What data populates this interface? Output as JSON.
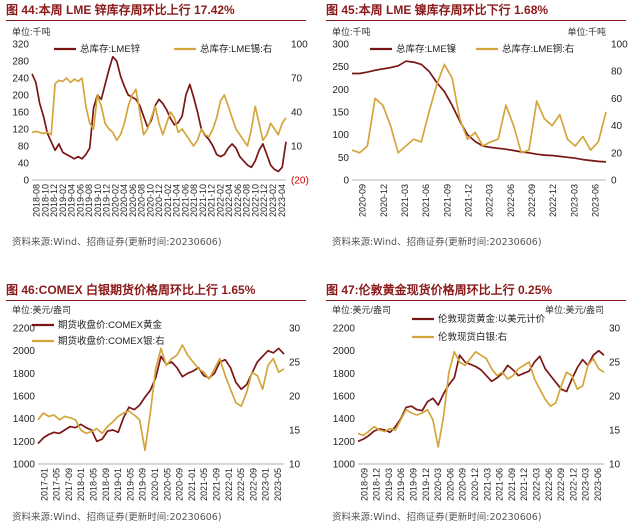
{
  "charts": [
    {
      "title": "图 44:本周 LME 锌库存周环比上行 17.42%",
      "source": "资料来源:Wind、招商证券(更新时间:20230606)",
      "chart_data": {
        "type": "line",
        "unit_left": "单位:千吨",
        "left_ticks": [
          "320",
          "280",
          "240",
          "200",
          "160",
          "120",
          "80",
          "40",
          "0"
        ],
        "right_ticks": [
          "100",
          "70",
          "40",
          "10",
          "(20)"
        ],
        "ylim_left": [
          0,
          320
        ],
        "ylim_right": [
          -20,
          100
        ],
        "x_ticks": [
          "2018-08",
          "2018-10",
          "2018-12",
          "2019-02",
          "2019-04",
          "2019-06",
          "2019-08",
          "2019-10",
          "2019-12",
          "2020-02",
          "2020-04",
          "2020-06",
          "2020-08",
          "2020-10",
          "2020-12",
          "2021-02",
          "2021-04",
          "2021-06",
          "2021-08",
          "2021-10",
          "2021-12",
          "2022-02",
          "2022-04",
          "2022-06",
          "2022-08",
          "2022-10",
          "2022-12",
          "2023-02",
          "2023-04"
        ],
        "series": [
          {
            "name": "总库存:LME锌",
            "axis": "left",
            "color": "#7a1515",
            "values": [
              250,
              230,
              180,
              150,
              110,
              90,
              70,
              85,
              65,
              60,
              55,
              50,
              55,
              50,
              60,
              75,
              170,
              200,
              190,
              225,
              260,
              290,
              280,
              245,
              220,
              200,
              195,
              190,
              175,
              150,
              125,
              140,
              175,
              190,
              180,
              165,
              145,
              130,
              135,
              150,
              200,
              225,
              195,
              160,
              120,
              105,
              95,
              80,
              60,
              55,
              60,
              75,
              85,
              75,
              55,
              45,
              35,
              30,
              45,
              70,
              85,
              60,
              35,
              25,
              20,
              30,
              90
            ]
          },
          {
            "name": "总库存:LME锡:右",
            "axis": "right",
            "color": "#d4a53a",
            "values": [
              22,
              23,
              22,
              21,
              22,
              20,
              65,
              68,
              67,
              70,
              66,
              69,
              67,
              70,
              45,
              30,
              25,
              55,
              45,
              30,
              25,
              22,
              15,
              20,
              30,
              45,
              55,
              60,
              40,
              20,
              25,
              35,
              45,
              30,
              20,
              30,
              40,
              35,
              22,
              25,
              20,
              15,
              10,
              15,
              25,
              20,
              18,
              25,
              35,
              50,
              55,
              45,
              35,
              25,
              20,
              15,
              10,
              25,
              45,
              30,
              15,
              20,
              30,
              25,
              20,
              30,
              35
            ]
          }
        ]
      }
    },
    {
      "title": "图 45:本周 LME 镍库存周环比下行 1.68%",
      "source": "资料来源:Wind、招商证券(更新时间:20230606)",
      "chart_data": {
        "type": "line",
        "unit_left": "单位:千吨",
        "unit_right": "单位:千吨",
        "left_ticks": [
          "300",
          "250",
          "200",
          "150",
          "100",
          "50",
          "0"
        ],
        "right_ticks": [
          "100",
          "80",
          "60",
          "40",
          "20",
          "0"
        ],
        "ylim_left": [
          0,
          300
        ],
        "ylim_right": [
          0,
          100
        ],
        "x_ticks": [
          "2020-09",
          "2020-12",
          "2021-03",
          "2021-06",
          "2021-09",
          "2021-12",
          "2022-03",
          "2022-06",
          "2022-09",
          "2022-12",
          "2023-03",
          "2023-06"
        ],
        "series": [
          {
            "name": "总库存:LME镍",
            "axis": "left",
            "color": "#7a1515",
            "values": [
              235,
              235,
              238,
              242,
              245,
              248,
              252,
              262,
              260,
              255,
              240,
              215,
              195,
              165,
              130,
              100,
              85,
              75,
              72,
              70,
              68,
              65,
              62,
              60,
              57,
              55,
              54,
              52,
              50,
              48,
              45,
              43,
              41,
              40
            ]
          },
          {
            "name": "总库存:LME铜:右",
            "axis": "right",
            "color": "#d4a53a",
            "values": [
              22,
              20,
              25,
              60,
              55,
              40,
              20,
              25,
              30,
              28,
              50,
              70,
              85,
              75,
              45,
              30,
              35,
              25,
              28,
              30,
              55,
              40,
              20,
              22,
              58,
              45,
              40,
              48,
              30,
              25,
              32,
              22,
              28,
              50
            ]
          }
        ]
      }
    },
    {
      "title": "图 46:COMEX 白银期货价格周环比上行 1.65%",
      "source": "资料来源:Wind、招商证券(更新时间:20230606)",
      "chart_data": {
        "type": "line",
        "unit_left": "单位:美元/盎司",
        "left_ticks": [
          "2200",
          "2000",
          "1800",
          "1600",
          "1400",
          "1200",
          "1000"
        ],
        "right_ticks": [
          "30",
          "25",
          "20",
          "15",
          "10"
        ],
        "ylim_left": [
          1000,
          2200
        ],
        "ylim_right": [
          10,
          30
        ],
        "x_ticks": [
          "2017-01",
          "2017-05",
          "2017-09",
          "2018-01",
          "2018-05",
          "2018-09",
          "2019-01",
          "2019-05",
          "2019-09",
          "2020-01",
          "2020-05",
          "2020-09",
          "2021-01",
          "2021-05",
          "2021-09",
          "2022-01",
          "2022-05",
          "2022-09",
          "2023-01",
          "2023-05"
        ],
        "series": [
          {
            "name": "期货收盘价:COMEX黄金",
            "axis": "left",
            "color": "#7a1515",
            "values": [
              1180,
              1230,
              1260,
              1280,
              1270,
              1300,
              1330,
              1320,
              1350,
              1320,
              1300,
              1200,
              1220,
              1290,
              1300,
              1280,
              1410,
              1500,
              1480,
              1520,
              1590,
              1650,
              1760,
              1950,
              1880,
              1900,
              1850,
              1770,
              1800,
              1820,
              1850,
              1780,
              1760,
              1800,
              1900,
              1920,
              1850,
              1720,
              1660,
              1700,
              1800,
              1900,
              1950,
              2000,
              1980,
              2020,
              1970
            ]
          },
          {
            "name": "期货收盘价:COMEX银:右",
            "axis": "right",
            "color": "#d4a53a",
            "values": [
              16.5,
              17.5,
              17.0,
              17.2,
              16.5,
              17.0,
              16.8,
              16.5,
              15.0,
              14.5,
              14.8,
              15.2,
              14.5,
              15.5,
              16.2,
              17.0,
              17.5,
              17.8,
              17.2,
              16.5,
              12.0,
              17.5,
              24.0,
              27.0,
              24.5,
              25.5,
              26.0,
              27.5,
              26.0,
              25.0,
              24.0,
              23.5,
              22.5,
              24.0,
              25.5,
              23.0,
              21.0,
              19.0,
              18.5,
              20.5,
              23.5,
              23.0,
              21.0,
              24.5,
              25.5,
              23.5,
              24.0
            ]
          }
        ]
      }
    },
    {
      "title": "图 47:伦敦黄金现货价格周环比上行 0.25%",
      "source": "资料来源:Wind、招商证券(更新时间:20230606)",
      "chart_data": {
        "type": "line",
        "unit_left": "单位:美元/盎司",
        "unit_right": "单位:美元/盎司",
        "left_ticks": [
          "2200",
          "2000",
          "1800",
          "1600",
          "1400",
          "1200",
          "1000"
        ],
        "right_ticks": [
          "30",
          "25",
          "20",
          "15",
          "10"
        ],
        "ylim_left": [
          1000,
          2200
        ],
        "ylim_right": [
          10,
          30
        ],
        "x_ticks": [
          "2018-09",
          "2018-12",
          "2019-03",
          "2019-06",
          "2019-09",
          "2019-12",
          "2020-03",
          "2020-06",
          "2020-09",
          "2020-12",
          "2021-03",
          "2021-06",
          "2021-09",
          "2021-12",
          "2022-03",
          "2022-06",
          "2022-09",
          "2022-12",
          "2023-03",
          "2023-06"
        ],
        "series": [
          {
            "name": "伦敦现货黄金:以美元计价",
            "axis": "left",
            "color": "#7a1515",
            "values": [
              1200,
              1220,
              1250,
              1290,
              1310,
              1300,
              1280,
              1330,
              1400,
              1500,
              1510,
              1480,
              1470,
              1550,
              1580,
              1520,
              1620,
              1700,
              1760,
              1960,
              1900,
              1880,
              1860,
              1830,
              1780,
              1730,
              1760,
              1800,
              1870,
              1830,
              1780,
              1800,
              1820,
              1900,
              1950,
              1840,
              1780,
              1720,
              1660,
              1640,
              1750,
              1850,
              1920,
              1870,
              1960,
              2000,
              1960
            ]
          },
          {
            "name": "伦敦现货白银:右",
            "axis": "right",
            "color": "#d4a53a",
            "values": [
              14.5,
              14.2,
              14.8,
              15.5,
              15.0,
              14.8,
              15.2,
              15.0,
              16.5,
              18.0,
              17.5,
              17.2,
              17.5,
              18.0,
              16.5,
              12.5,
              17.0,
              23.5,
              26.5,
              25.0,
              24.5,
              25.5,
              26.5,
              26.0,
              25.5,
              24.0,
              23.0,
              23.5,
              22.5,
              23.0,
              24.0,
              24.5,
              25.0,
              22.5,
              21.0,
              19.5,
              18.5,
              19.0,
              21.5,
              23.5,
              23.0,
              21.0,
              21.5,
              24.5,
              25.5,
              24.0,
              23.5
            ]
          }
        ]
      }
    }
  ]
}
